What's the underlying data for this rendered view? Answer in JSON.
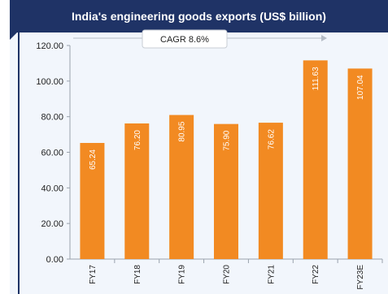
{
  "chart_data": {
    "type": "bar",
    "title": "India's engineering goods exports (US$ billion)",
    "xlabel": "",
    "ylabel": "",
    "categories": [
      "FY17",
      "FY18",
      "FY19",
      "FY20",
      "FY21",
      "FY22",
      "FY23E"
    ],
    "values": [
      65.24,
      76.2,
      80.95,
      75.9,
      76.62,
      111.63,
      107.04
    ],
    "value_labels": [
      "65.24",
      "76.20",
      "80.95",
      "75.90",
      "76.62",
      "111.63",
      "107.04"
    ],
    "ylim": [
      0,
      120
    ],
    "yticks": [
      "0.00",
      "20.00",
      "40.00",
      "60.00",
      "80.00",
      "100.00",
      "120.00"
    ],
    "grid": false,
    "legend": "none",
    "annotation": "CAGR 8.6%",
    "colors": {
      "bar": "#f28a22",
      "title_bar": "#1f3366",
      "background": "#f2f6fc"
    }
  }
}
